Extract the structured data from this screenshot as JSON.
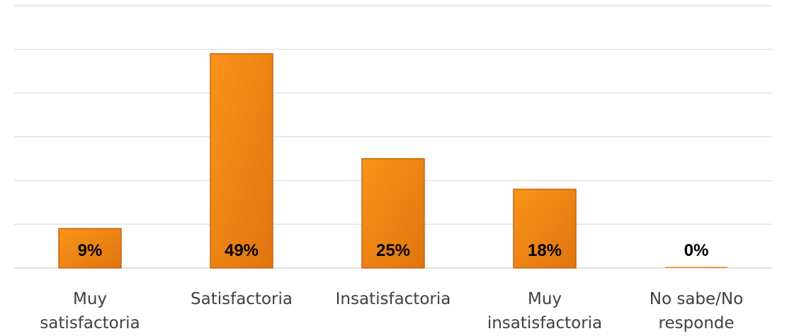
{
  "chart_data": {
    "type": "bar",
    "categories": [
      [
        "Muy",
        "satisfactoria"
      ],
      [
        "Satisfactoria"
      ],
      [
        "Insatisfactoria"
      ],
      [
        "Muy",
        "insatisfactoria"
      ],
      [
        "No sabe/No",
        "responde"
      ]
    ],
    "values": [
      9,
      49,
      25,
      18,
      0
    ],
    "data_labels": [
      "9%",
      "49%",
      "25%",
      "18%",
      "0%"
    ],
    "ylim": [
      0,
      60
    ],
    "gridlines": [
      0,
      10,
      20,
      30,
      40,
      50,
      60
    ],
    "grid": true,
    "legend": "none",
    "colors": {
      "bar_light": "#fa9418",
      "bar_dark": "#e07410",
      "bar_edge": "#c8650e",
      "grid": "#d9d9d9",
      "label": "#404040"
    }
  }
}
